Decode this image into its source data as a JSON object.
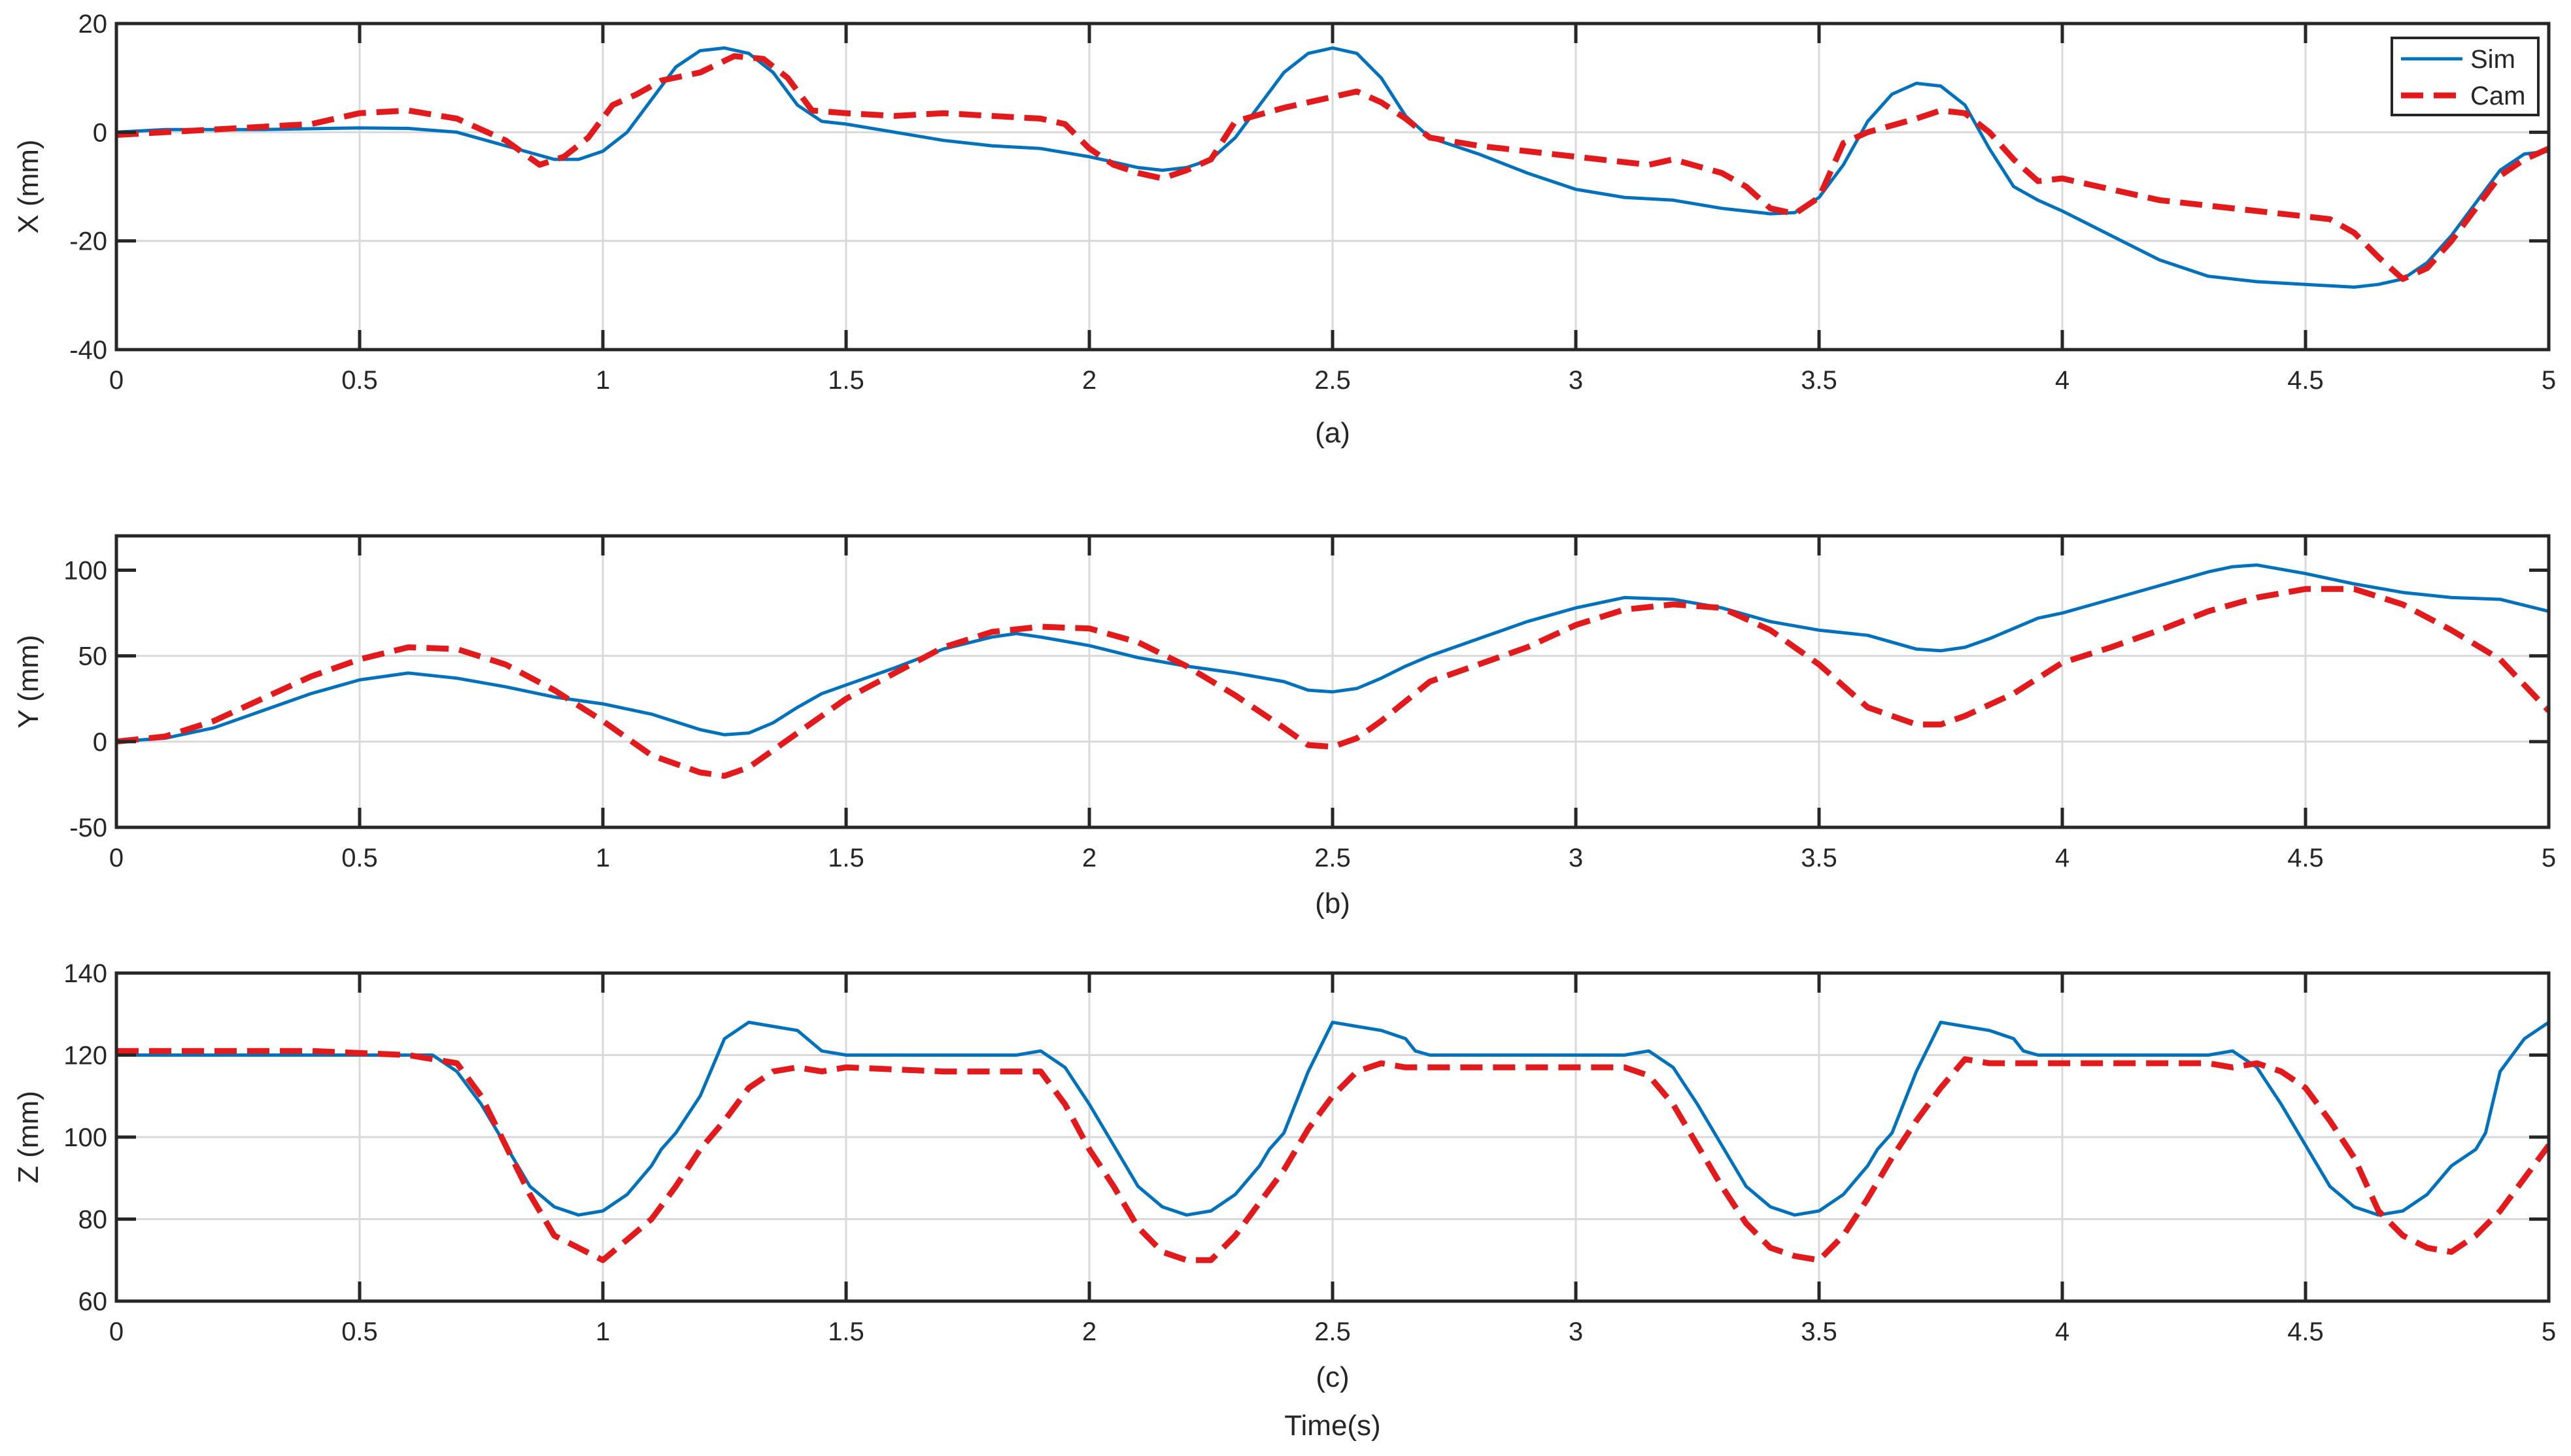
{
  "colors": {
    "sim": "#0072BD",
    "cam": "#E31A1C",
    "axis": "#262626",
    "grid": "#d9d9d9"
  },
  "legend": {
    "placement": "top-right",
    "entries": [
      "Sim",
      "Cam"
    ]
  },
  "figure_xlabel": "Time(s)",
  "chart_data": [
    {
      "type": "line",
      "caption": "(a)",
      "xlabel": "",
      "ylabel": "X (mm)",
      "xlim": [
        0,
        5
      ],
      "ylim": [
        -40,
        20
      ],
      "xticks": [
        0,
        0.5,
        1,
        1.5,
        2,
        2.5,
        3,
        3.5,
        4,
        4.5,
        5
      ],
      "xticklabels": [
        "0",
        "0.5",
        "1",
        "1.5",
        "2",
        "2.5",
        "3",
        "3.5",
        "4",
        "4.5",
        "5"
      ],
      "yticks": [
        -40,
        -20,
        0,
        20
      ],
      "yticklabels": [
        "-40",
        "-20",
        "0",
        "20"
      ],
      "grid": true,
      "legend": true,
      "series": [
        {
          "name": "Sim",
          "style": "solid",
          "x": [
            0,
            0.1,
            0.3,
            0.5,
            0.6,
            0.7,
            0.8,
            0.9,
            0.95,
            1.0,
            1.05,
            1.1,
            1.15,
            1.2,
            1.25,
            1.3,
            1.35,
            1.4,
            1.45,
            1.5,
            1.6,
            1.7,
            1.8,
            1.9,
            2.0,
            2.1,
            2.15,
            2.2,
            2.25,
            2.3,
            2.35,
            2.4,
            2.45,
            2.5,
            2.55,
            2.6,
            2.65,
            2.7,
            2.8,
            2.9,
            3.0,
            3.1,
            3.2,
            3.3,
            3.4,
            3.45,
            3.5,
            3.55,
            3.6,
            3.65,
            3.7,
            3.75,
            3.8,
            3.85,
            3.9,
            3.95,
            4.0,
            4.1,
            4.2,
            4.3,
            4.4,
            4.5,
            4.6,
            4.65,
            4.7,
            4.75,
            4.8,
            4.85,
            4.9,
            4.95,
            5.0
          ],
          "y": [
            0,
            0.5,
            0.5,
            0.8,
            0.7,
            0,
            -2.5,
            -5,
            -5,
            -3.5,
            0,
            6,
            12,
            15,
            15.5,
            14.5,
            11,
            5,
            2,
            1.5,
            0,
            -1.5,
            -2.5,
            -3,
            -4.5,
            -6.5,
            -7,
            -6.5,
            -5,
            -1,
            5,
            11,
            14.5,
            15.5,
            14.5,
            10,
            3,
            -1,
            -4,
            -7.5,
            -10.5,
            -12,
            -12.5,
            -14,
            -15,
            -14.8,
            -12,
            -6,
            2,
            7,
            9,
            8.5,
            5,
            -3,
            -10,
            -12.5,
            -14.5,
            -19,
            -23.5,
            -26.5,
            -27.5,
            -28,
            -28.5,
            -28,
            -27,
            -24,
            -19,
            -13,
            -7,
            -4,
            -3.5
          ]
        },
        {
          "name": "Cam",
          "style": "dashed",
          "x": [
            0,
            0.1,
            0.2,
            0.3,
            0.4,
            0.5,
            0.6,
            0.7,
            0.8,
            0.87,
            0.92,
            0.97,
            1.02,
            1.07,
            1.12,
            1.2,
            1.27,
            1.33,
            1.38,
            1.43,
            1.5,
            1.6,
            1.7,
            1.8,
            1.9,
            1.95,
            2.0,
            2.05,
            2.1,
            2.15,
            2.2,
            2.25,
            2.3,
            2.4,
            2.5,
            2.55,
            2.6,
            2.65,
            2.7,
            2.8,
            2.9,
            3.0,
            3.1,
            3.15,
            3.2,
            3.3,
            3.35,
            3.4,
            3.45,
            3.5,
            3.55,
            3.6,
            3.7,
            3.75,
            3.8,
            3.85,
            3.9,
            3.95,
            4.0,
            4.1,
            4.2,
            4.3,
            4.4,
            4.5,
            4.55,
            4.6,
            4.65,
            4.7,
            4.75,
            4.8,
            4.85,
            4.9,
            4.95,
            5.0
          ],
          "y": [
            -0.5,
            0,
            0.5,
            1,
            1.5,
            3.5,
            4,
            2.5,
            -1.5,
            -6,
            -4.5,
            -1,
            5,
            7,
            9.5,
            11,
            14,
            13.5,
            10,
            4,
            3.5,
            3,
            3.5,
            3,
            2.5,
            1.5,
            -3,
            -6,
            -7.5,
            -8.5,
            -7,
            -5,
            2,
            4.5,
            6.5,
            7.5,
            5.5,
            2.5,
            -1,
            -2.5,
            -3.5,
            -4.5,
            -5.5,
            -6,
            -5,
            -7.5,
            -10,
            -14,
            -15,
            -12,
            -2,
            0,
            2.5,
            4,
            3.5,
            0,
            -5,
            -9,
            -8.5,
            -10.5,
            -12.5,
            -13.5,
            -14.5,
            -15.5,
            -16,
            -18.5,
            -23,
            -27,
            -25,
            -20,
            -14,
            -8,
            -5,
            -3
          ]
        }
      ]
    },
    {
      "type": "line",
      "caption": "(b)",
      "xlabel": "",
      "ylabel": "Y (mm)",
      "xlim": [
        0,
        5
      ],
      "ylim": [
        -50,
        120
      ],
      "xticks": [
        0,
        0.5,
        1,
        1.5,
        2,
        2.5,
        3,
        3.5,
        4,
        4.5,
        5
      ],
      "xticklabels": [
        "0",
        "0.5",
        "1",
        "1.5",
        "2",
        "2.5",
        "3",
        "3.5",
        "4",
        "4.5",
        "5"
      ],
      "yticks": [
        -50,
        0,
        50,
        100
      ],
      "yticklabels": [
        "-50",
        "0",
        "50",
        "100"
      ],
      "grid": true,
      "legend": false,
      "series": [
        {
          "name": "Sim",
          "style": "solid",
          "x": [
            0,
            0.1,
            0.2,
            0.3,
            0.4,
            0.5,
            0.6,
            0.7,
            0.8,
            0.9,
            1.0,
            1.1,
            1.2,
            1.25,
            1.3,
            1.35,
            1.4,
            1.45,
            1.5,
            1.6,
            1.7,
            1.8,
            1.85,
            1.9,
            2.0,
            2.1,
            2.2,
            2.3,
            2.4,
            2.45,
            2.5,
            2.55,
            2.6,
            2.65,
            2.7,
            2.8,
            2.9,
            3.0,
            3.1,
            3.2,
            3.3,
            3.4,
            3.5,
            3.6,
            3.65,
            3.7,
            3.75,
            3.8,
            3.85,
            3.9,
            3.95,
            4.0,
            4.1,
            4.2,
            4.3,
            4.35,
            4.4,
            4.5,
            4.6,
            4.7,
            4.8,
            4.9,
            5.0
          ],
          "y": [
            0,
            2,
            8,
            18,
            28,
            36,
            40,
            37,
            32,
            26,
            22,
            16,
            7,
            4,
            5,
            11,
            20,
            28,
            33,
            43,
            54,
            61,
            63,
            61,
            56,
            49,
            44,
            40,
            35,
            30,
            29,
            31,
            37,
            44,
            50,
            60,
            70,
            78,
            84,
            83,
            78,
            70,
            65,
            62,
            58,
            54,
            53,
            55,
            60,
            66,
            72,
            75,
            83,
            91,
            99,
            102,
            103,
            98,
            92,
            87,
            84,
            83,
            76
          ]
        },
        {
          "name": "Cam",
          "style": "dashed",
          "x": [
            0,
            0.1,
            0.2,
            0.3,
            0.4,
            0.5,
            0.6,
            0.7,
            0.8,
            0.9,
            1.0,
            1.1,
            1.2,
            1.25,
            1.3,
            1.4,
            1.5,
            1.6,
            1.7,
            1.8,
            1.9,
            2.0,
            2.1,
            2.2,
            2.3,
            2.4,
            2.45,
            2.5,
            2.55,
            2.6,
            2.7,
            2.8,
            2.9,
            3.0,
            3.1,
            3.2,
            3.3,
            3.4,
            3.5,
            3.6,
            3.7,
            3.75,
            3.8,
            3.9,
            4.0,
            4.1,
            4.2,
            4.3,
            4.4,
            4.5,
            4.6,
            4.7,
            4.8,
            4.9,
            5.0
          ],
          "y": [
            0,
            3,
            12,
            25,
            38,
            48,
            55,
            54,
            45,
            30,
            12,
            -8,
            -18,
            -20,
            -15,
            5,
            25,
            40,
            55,
            64,
            67,
            66,
            58,
            44,
            27,
            8,
            -2,
            -3,
            2,
            12,
            35,
            45,
            55,
            68,
            77,
            80,
            78,
            65,
            45,
            20,
            10,
            10,
            15,
            28,
            46,
            55,
            65,
            76,
            84,
            89,
            89,
            80,
            65,
            48,
            18
          ]
        }
      ]
    },
    {
      "type": "line",
      "caption": "(c)",
      "xlabel": "Time(s)",
      "ylabel": "Z (mm)",
      "xlim": [
        0,
        5
      ],
      "ylim": [
        60,
        140
      ],
      "xticks": [
        0,
        0.5,
        1,
        1.5,
        2,
        2.5,
        3,
        3.5,
        4,
        4.5,
        5
      ],
      "xticklabels": [
        "0",
        "0.5",
        "1",
        "1.5",
        "2",
        "2.5",
        "3",
        "3.5",
        "4",
        "4.5",
        "5"
      ],
      "yticks": [
        60,
        80,
        100,
        120,
        140
      ],
      "yticklabels": [
        "60",
        "80",
        "100",
        "120",
        "140"
      ],
      "grid": true,
      "legend": false,
      "series": [
        {
          "name": "Sim",
          "style": "solid",
          "x": [
            0,
            0.2,
            0.4,
            0.6,
            0.65,
            0.7,
            0.75,
            0.8,
            0.85,
            0.9,
            0.95,
            1.0,
            1.05,
            1.1,
            1.12,
            1.15,
            1.2,
            1.25,
            1.3,
            1.35,
            1.4,
            1.42,
            1.45,
            1.5,
            1.7,
            1.85,
            1.9,
            1.95,
            2.0,
            2.05,
            2.1,
            2.15,
            2.2,
            2.25,
            2.3,
            2.35,
            2.37,
            2.4,
            2.45,
            2.5,
            2.55,
            2.6,
            2.65,
            2.67,
            2.7,
            2.75,
            3.0,
            3.1,
            3.15,
            3.2,
            3.25,
            3.3,
            3.35,
            3.4,
            3.45,
            3.5,
            3.55,
            3.6,
            3.62,
            3.65,
            3.7,
            3.75,
            3.8,
            3.85,
            3.9,
            3.92,
            3.95,
            4.0,
            4.3,
            4.35,
            4.4,
            4.45,
            4.5,
            4.55,
            4.6,
            4.65,
            4.7,
            4.75,
            4.8,
            4.85,
            4.87,
            4.9,
            4.95,
            5.0
          ],
          "y": [
            120,
            120,
            120,
            120,
            120,
            116,
            108,
            98,
            88,
            83,
            81,
            82,
            86,
            93,
            97,
            101,
            110,
            124,
            128,
            127,
            126,
            124,
            121,
            120,
            120,
            120,
            121,
            117,
            108,
            98,
            88,
            83,
            81,
            82,
            86,
            93,
            97,
            101,
            116,
            128,
            127,
            126,
            124,
            121,
            120,
            120,
            120,
            120,
            121,
            117,
            108,
            98,
            88,
            83,
            81,
            82,
            86,
            93,
            97,
            101,
            116,
            128,
            127,
            126,
            124,
            121,
            120,
            120,
            120,
            121,
            117,
            108,
            98,
            88,
            83,
            81,
            82,
            86,
            93,
            97,
            101,
            116,
            124,
            128
          ]
        },
        {
          "name": "Cam",
          "style": "dashed",
          "x": [
            0,
            0.2,
            0.4,
            0.6,
            0.7,
            0.75,
            0.8,
            0.85,
            0.9,
            0.95,
            1.0,
            1.05,
            1.1,
            1.15,
            1.2,
            1.25,
            1.3,
            1.35,
            1.4,
            1.45,
            1.5,
            1.7,
            1.9,
            1.95,
            2.0,
            2.05,
            2.1,
            2.15,
            2.2,
            2.25,
            2.3,
            2.35,
            2.4,
            2.45,
            2.5,
            2.55,
            2.6,
            2.65,
            2.7,
            2.9,
            3.1,
            3.15,
            3.2,
            3.25,
            3.3,
            3.35,
            3.4,
            3.45,
            3.5,
            3.55,
            3.6,
            3.65,
            3.7,
            3.75,
            3.8,
            3.85,
            3.9,
            4.1,
            4.3,
            4.35,
            4.4,
            4.45,
            4.5,
            4.55,
            4.6,
            4.65,
            4.7,
            4.75,
            4.8,
            4.85,
            4.9,
            4.95,
            5.0
          ],
          "y": [
            121,
            121,
            121,
            120,
            118,
            110,
            98,
            86,
            76,
            73,
            70,
            75,
            80,
            88,
            97,
            104,
            112,
            116,
            117,
            116,
            117,
            116,
            116,
            108,
            97,
            88,
            78,
            72,
            70,
            70,
            76,
            84,
            92,
            102,
            110,
            116,
            118,
            117,
            117,
            117,
            117,
            115,
            108,
            98,
            88,
            79,
            73,
            71,
            70,
            76,
            85,
            95,
            104,
            112,
            119,
            118,
            118,
            118,
            118,
            117,
            118,
            116,
            112,
            104,
            95,
            82,
            76,
            73,
            72,
            76,
            82,
            90,
            98
          ]
        }
      ]
    }
  ]
}
